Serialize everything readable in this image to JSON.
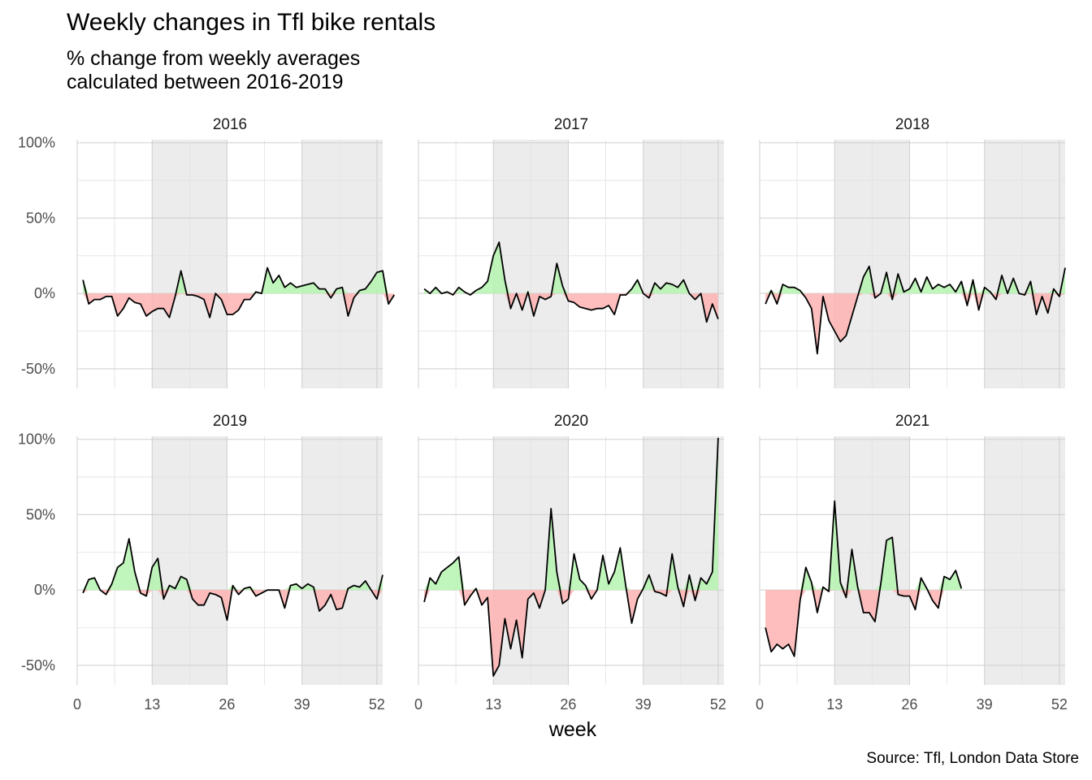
{
  "title": "Weekly changes in Tfl bike rentals",
  "subtitle": "% change from weekly averages\ncalculated between 2016-2019",
  "caption": "Source: Tfl, London Data Store",
  "colors": {
    "above": "#b5f5b0",
    "below": "#ffb3b3",
    "line": "#000000",
    "quarter_shade": "#ececec",
    "grid": "#cfcfcf"
  },
  "chart_data": {
    "type": "line",
    "facet_by": "year",
    "layout": "2 rows x 3 columns",
    "xlabel": "week",
    "ylabel": "",
    "x_ticks": [
      0,
      13,
      26,
      39,
      52
    ],
    "y_ticks": [
      -50,
      0,
      50,
      100
    ],
    "y_tick_labels": [
      "-50%",
      "0%",
      "50%",
      "100%"
    ],
    "xlim": [
      0,
      53
    ],
    "ylim": [
      -63,
      102
    ],
    "shaded_week_ranges": [
      [
        13,
        26
      ],
      [
        39,
        53
      ]
    ],
    "series": [
      {
        "name": "2016",
        "x_start": 1,
        "values": [
          9,
          -7,
          -4,
          -4,
          -2,
          -2,
          -15,
          -10,
          -3,
          -6,
          -7,
          -15,
          -12,
          -10,
          -10,
          -16,
          -2,
          15,
          -1,
          -1,
          -2,
          -4,
          -16,
          0,
          -4,
          -14,
          -14,
          -11,
          -4,
          -4,
          1,
          0,
          17,
          7,
          12,
          4,
          7,
          4,
          5,
          6,
          7,
          3,
          3,
          -3,
          3,
          4,
          -15,
          -3,
          2,
          3,
          8,
          14,
          15,
          -7,
          -1
        ],
        "y_unit": "%"
      },
      {
        "name": "2017",
        "x_start": 1,
        "values": [
          3,
          0,
          4,
          0,
          1,
          -1,
          4,
          1,
          -1,
          2,
          4,
          8,
          25,
          34,
          9,
          -10,
          0,
          -11,
          1,
          -15,
          -2,
          -4,
          -2,
          20,
          5,
          -5,
          -6,
          -9,
          -10,
          -11,
          -10,
          -10,
          -8,
          -14,
          -1,
          -1,
          3,
          9,
          0,
          -3,
          7,
          3,
          7,
          6,
          4,
          9,
          0,
          -4,
          0,
          -19,
          -7,
          -17
        ],
        "y_unit": "%"
      },
      {
        "name": "2018",
        "x_start": 1,
        "values": [
          -7,
          2,
          -7,
          6,
          4,
          4,
          2,
          -3,
          -10,
          -40,
          -2,
          -18,
          -25,
          -32,
          -28,
          -15,
          -2,
          11,
          18,
          -3,
          0,
          14,
          -4,
          13,
          1,
          3,
          10,
          1,
          11,
          3,
          6,
          4,
          6,
          1,
          8,
          -8,
          9,
          -11,
          4,
          1,
          -4,
          12,
          0,
          10,
          0,
          -1,
          8,
          -14,
          -2,
          -13,
          3,
          -2,
          17
        ],
        "y_unit": "%"
      },
      {
        "name": "2019",
        "x_start": 1,
        "values": [
          -2,
          7,
          8,
          0,
          -3,
          4,
          15,
          18,
          34,
          12,
          -2,
          -4,
          15,
          21,
          -6,
          3,
          1,
          9,
          7,
          -6,
          -10,
          -10,
          -2,
          -3,
          -5,
          -20,
          3,
          -3,
          1,
          2,
          -4,
          -2,
          0,
          0,
          0,
          -12,
          3,
          4,
          1,
          4,
          2,
          -14,
          -10,
          -3,
          -13,
          -12,
          1,
          3,
          2,
          6,
          0,
          -6,
          10
        ],
        "y_unit": "%"
      },
      {
        "name": "2020",
        "x_start": 1,
        "values": [
          -8,
          8,
          4,
          12,
          15,
          18,
          22,
          -10,
          -4,
          1,
          -10,
          -5,
          -57,
          -50,
          -19,
          -39,
          -20,
          -45,
          -6,
          -2,
          -12,
          0,
          54,
          12,
          -9,
          -6,
          24,
          7,
          3,
          -6,
          0,
          23,
          4,
          12,
          28,
          2,
          -22,
          -6,
          1,
          10,
          -1,
          -2,
          -4,
          24,
          2,
          -11,
          10,
          -7,
          8,
          4,
          12,
          101
        ],
        "y_unit": "%"
      },
      {
        "name": "2021",
        "x_start": 1,
        "values": [
          -25,
          -41,
          -36,
          -39,
          -36,
          -44,
          -7,
          15,
          5,
          -15,
          2,
          -1,
          59,
          5,
          -5,
          27,
          2,
          -15,
          -15,
          -21,
          4,
          33,
          35,
          -3,
          -4,
          -4,
          -13,
          8,
          1,
          -7,
          -12,
          9,
          7,
          13,
          1
        ],
        "y_unit": "%"
      }
    ]
  }
}
